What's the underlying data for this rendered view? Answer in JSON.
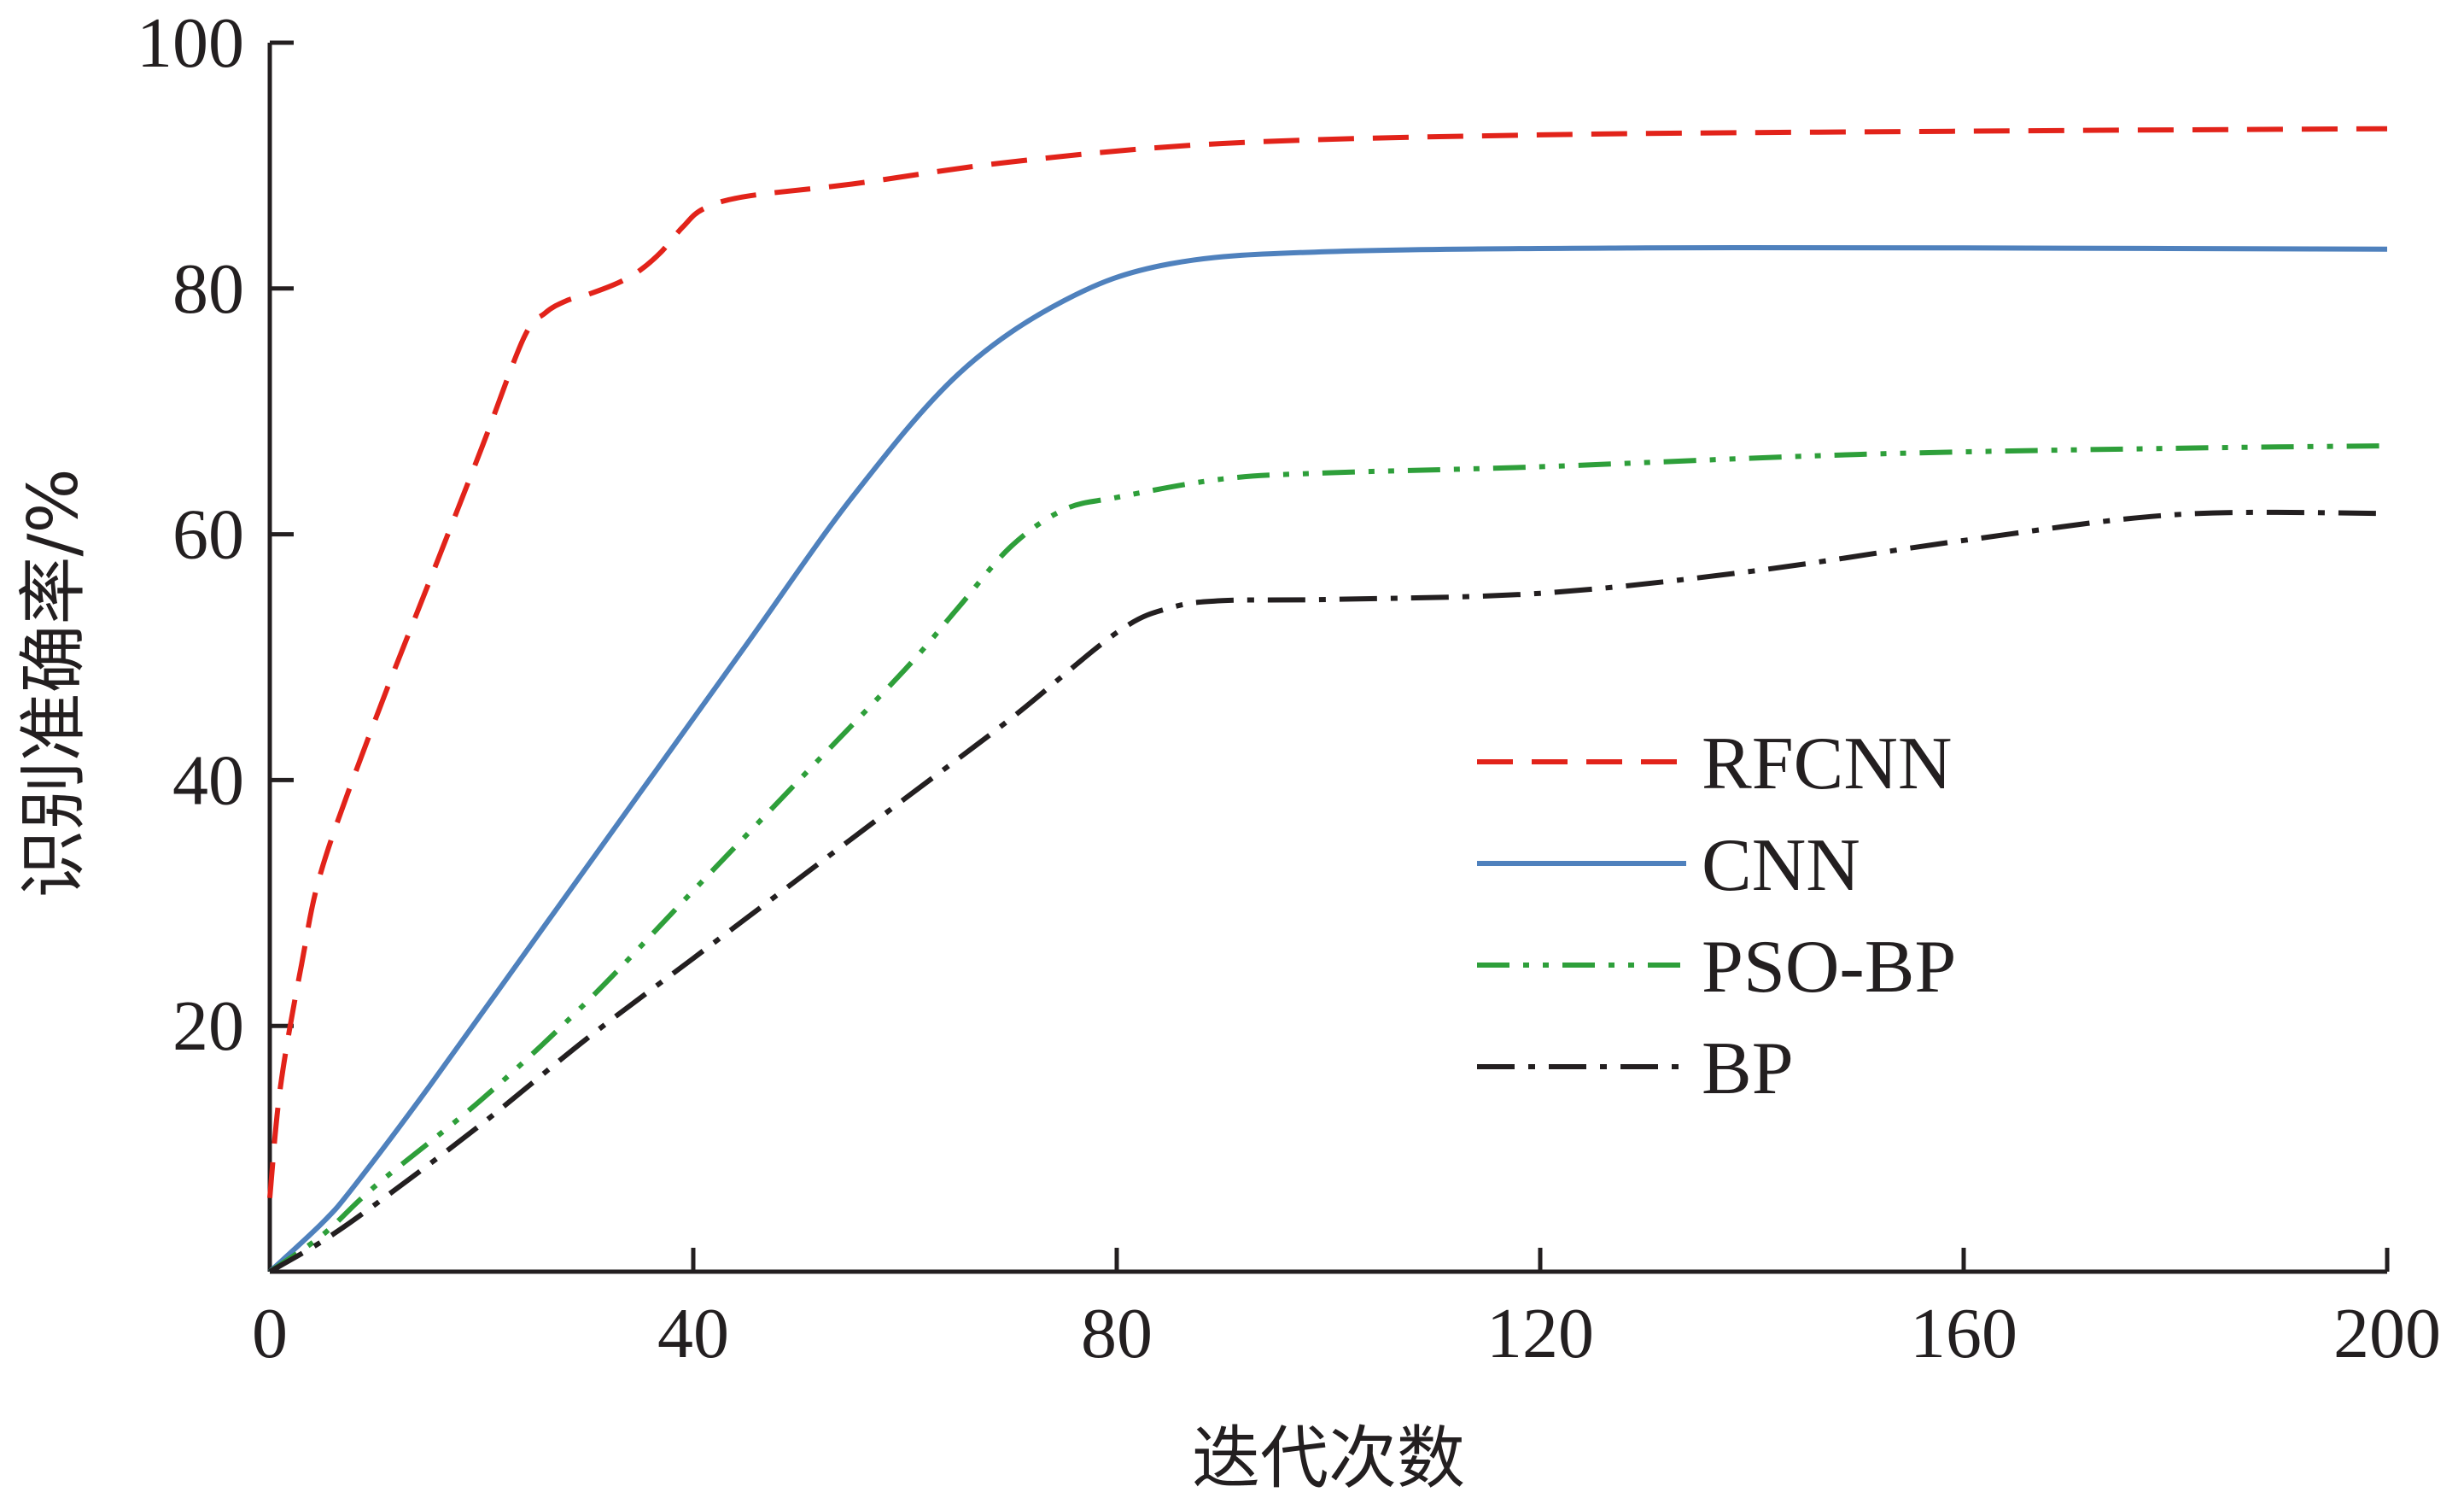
{
  "chart_data": {
    "type": "line",
    "title": "",
    "xlabel": "迭代次数",
    "ylabel": "识别准确率/%",
    "xlim": [
      0,
      200
    ],
    "ylim": [
      0,
      100
    ],
    "x_ticks": [
      0,
      40,
      80,
      120,
      160,
      200
    ],
    "y_ticks": [
      20,
      40,
      60,
      80,
      100
    ],
    "grid": false,
    "legend_position": "center-right",
    "series": [
      {
        "name": "RFCNN",
        "color": "#e2231a",
        "style": "dashed",
        "x": [
          0,
          1,
          3,
          5,
          10,
          15,
          20,
          24,
          26,
          28,
          30,
          33,
          35,
          37,
          39,
          41,
          45,
          55,
          70,
          90,
          120,
          160,
          200
        ],
        "y": [
          6,
          15,
          25,
          33,
          45,
          56,
          67,
          76,
          78,
          79,
          79.5,
          80.5,
          81.5,
          83,
          85,
          86.5,
          87.5,
          88.5,
          90.3,
          91.8,
          92.5,
          92.8,
          93
        ]
      },
      {
        "name": "CNN",
        "color": "#4f81bd",
        "style": "solid",
        "x": [
          0,
          5,
          8,
          15,
          25,
          35,
          45,
          55,
          65,
          75,
          85,
          100,
          130,
          160,
          200
        ],
        "y": [
          0,
          4,
          7,
          15,
          27,
          39,
          51,
          63,
          73,
          79,
          82,
          83,
          83.3,
          83.3,
          83.2
        ]
      },
      {
        "name": "PSO-BP",
        "color": "#2e9f3a",
        "style": "dash-dot-dot",
        "x": [
          0,
          5,
          10,
          20,
          30,
          40,
          50,
          60,
          65,
          70,
          75,
          80,
          90,
          100,
          120,
          150,
          180,
          200
        ],
        "y": [
          0,
          3,
          7,
          14,
          22,
          31,
          40,
          49,
          54,
          59,
          62,
          63,
          64.5,
          65,
          65.5,
          66.5,
          67,
          67.2
        ]
      },
      {
        "name": "BP",
        "color": "#231f20",
        "style": "dash-dot",
        "x": [
          0,
          5,
          10,
          20,
          30,
          40,
          50,
          60,
          70,
          80,
          85,
          90,
          100,
          120,
          140,
          160,
          180,
          200
        ],
        "y": [
          0,
          2.5,
          5.5,
          12,
          19,
          25.5,
          32,
          38.5,
          45,
          52,
          54,
          54.6,
          54.7,
          55.2,
          57,
          59.5,
          61.6,
          61.7
        ]
      }
    ]
  }
}
